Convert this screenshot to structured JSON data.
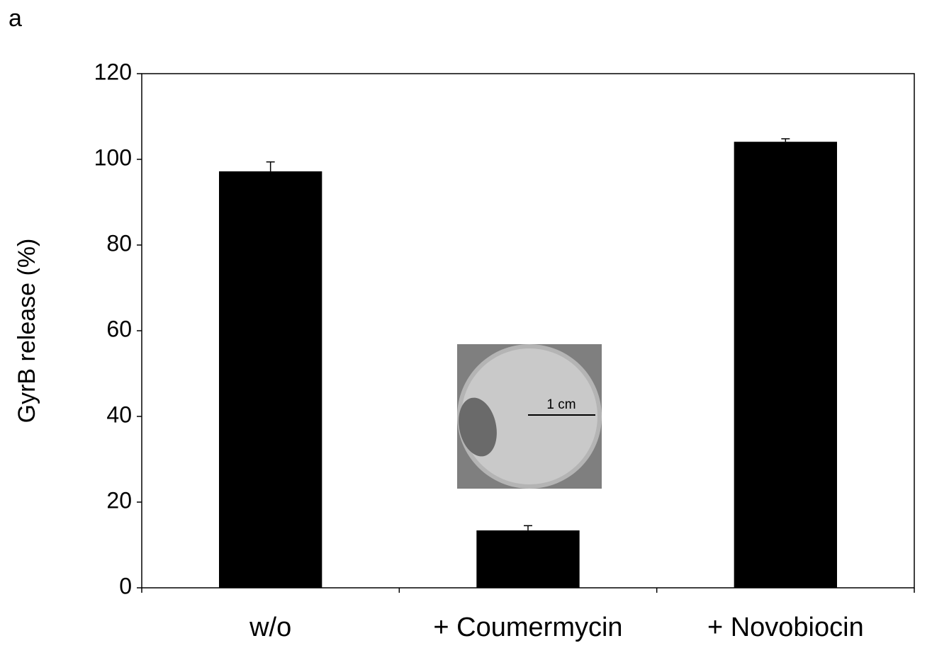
{
  "chart_data": {
    "type": "bar",
    "panel_label": "a",
    "y_label": "GyrB release (%)",
    "categories": [
      "w/o",
      "+ Coumermycin",
      "+ Novobiocin"
    ],
    "values": [
      97.2,
      13.4,
      104.1
    ],
    "errors": [
      2.2,
      1.1,
      0.7
    ],
    "color": "#000000",
    "ylim": [
      0,
      120
    ],
    "yticks": [
      0,
      20,
      40,
      60,
      80,
      100,
      120
    ],
    "grid": false,
    "annotations": [
      "1 cm"
    ]
  }
}
